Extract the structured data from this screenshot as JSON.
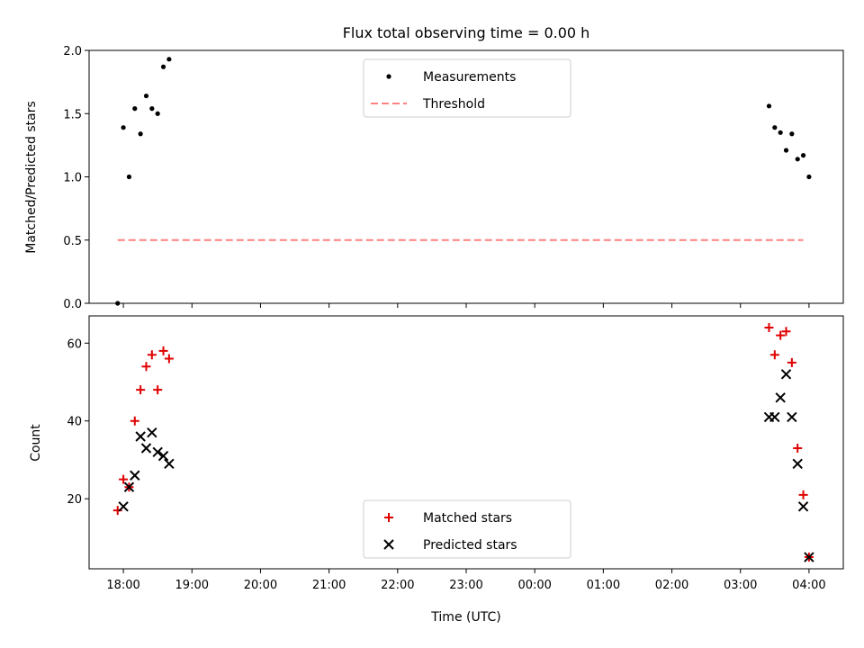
{
  "chart_data": [
    {
      "type": "scatter",
      "title": "Flux total observing time = 0.00 h",
      "xlabel": "",
      "ylabel": "Matched/Predicted stars",
      "xlim": [
        "17:30",
        "04:30"
      ],
      "ylim": [
        0,
        2.0
      ],
      "yticks": [
        0.0,
        0.5,
        1.0,
        1.5,
        2.0
      ],
      "ytick_labels": [
        "0.0",
        "0.5",
        "1.0",
        "1.5",
        "2.0"
      ],
      "legend_position": "top-center",
      "series": [
        {
          "name": "Measurements",
          "style": "dot",
          "color": "#000000",
          "x": [
            "17:55",
            "18:00",
            "18:05",
            "18:10",
            "18:15",
            "18:20",
            "18:25",
            "18:30",
            "18:35",
            "18:40",
            "03:25",
            "03:30",
            "03:35",
            "03:40",
            "03:45",
            "03:50",
            "03:55",
            "04:00"
          ],
          "y": [
            0.0,
            1.39,
            1.0,
            1.54,
            1.34,
            1.64,
            1.54,
            1.5,
            1.87,
            1.93,
            1.56,
            1.39,
            1.35,
            1.21,
            1.34,
            1.14,
            1.17,
            1.0
          ]
        },
        {
          "name": "Threshold",
          "style": "dashed-line",
          "color": "#ff8080",
          "x": [
            "17:55",
            "03:55"
          ],
          "y": [
            0.5,
            0.5
          ]
        }
      ]
    },
    {
      "type": "scatter",
      "title": "",
      "xlabel": "Time (UTC)",
      "ylabel": "Count",
      "xlim": [
        "17:30",
        "04:30"
      ],
      "ylim": [
        2,
        67
      ],
      "yticks": [
        20,
        40,
        60
      ],
      "ytick_labels": [
        "20",
        "40",
        "60"
      ],
      "xtick_labels": [
        "18:00",
        "19:00",
        "20:00",
        "21:00",
        "22:00",
        "23:00",
        "00:00",
        "01:00",
        "02:00",
        "03:00",
        "04:00"
      ],
      "legend_position": "bottom-center",
      "series": [
        {
          "name": "Matched stars",
          "style": "plus",
          "color": "#e00000",
          "x": [
            "17:55",
            "18:00",
            "18:05",
            "18:10",
            "18:15",
            "18:20",
            "18:25",
            "18:30",
            "18:35",
            "18:40",
            "03:25",
            "03:30",
            "03:35",
            "03:40",
            "03:45",
            "03:50",
            "03:55",
            "04:00"
          ],
          "y": [
            17,
            25,
            23,
            40,
            48,
            54,
            57,
            48,
            58,
            56,
            64,
            57,
            62,
            63,
            55,
            33,
            21,
            5
          ]
        },
        {
          "name": "Predicted stars",
          "style": "x",
          "color": "#000000",
          "x": [
            "18:00",
            "18:05",
            "18:10",
            "18:15",
            "18:20",
            "18:25",
            "18:30",
            "18:35",
            "18:40",
            "03:25",
            "03:30",
            "03:35",
            "03:40",
            "03:45",
            "03:50",
            "03:55",
            "04:00"
          ],
          "y": [
            18,
            23,
            26,
            36,
            33,
            37,
            32,
            31,
            29,
            41,
            41,
            46,
            52,
            41,
            29,
            18,
            5
          ]
        }
      ]
    }
  ]
}
